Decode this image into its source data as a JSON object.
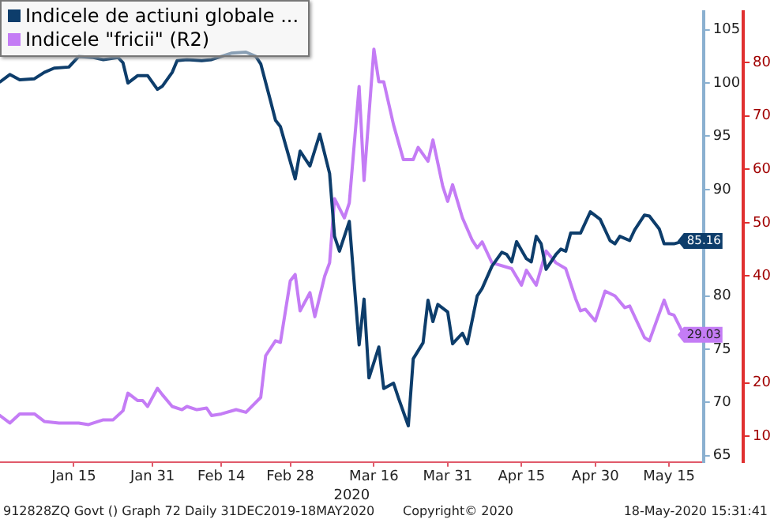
{
  "chart_data": {
    "type": "line",
    "xlabel": "2020",
    "legend": "top left",
    "marker": "none",
    "line_style": "solid",
    "xlim": [
      "2019-12-31",
      "2020-05-22"
    ],
    "xticks": [
      {
        "value": "2020-01-15",
        "label": "Jan 15"
      },
      {
        "value": "2020-01-31",
        "label": "Jan 31"
      },
      {
        "value": "2020-02-14",
        "label": "Feb 14"
      },
      {
        "value": "2020-02-28",
        "label": "Feb 28"
      },
      {
        "value": "2020-03-16",
        "label": "Mar 16"
      },
      {
        "value": "2020-03-31",
        "label": "Mar 31"
      },
      {
        "value": "2020-04-15",
        "label": "Apr 15"
      },
      {
        "value": "2020-04-30",
        "label": "Apr 30"
      },
      {
        "value": "2020-05-15",
        "label": "May 15"
      }
    ],
    "ylim": [
      64.4,
      106.7
    ],
    "yticks": [
      65,
      70,
      75,
      80,
      90,
      95,
      100,
      105
    ],
    "y2lim": [
      5.2,
      89.5
    ],
    "y2ticks": [
      10,
      20,
      40,
      50,
      60,
      70,
      80
    ],
    "annotations": [
      "912828ZQ Govt () Graph 72  Daily 31DEC2019-18MAY2020",
      "Copyright© 2020",
      "18-May-2020 15:31:41"
    ],
    "series": [
      {
        "name": "Indicele de actiuni globale ...",
        "color": "#0d3d6b",
        "axis": "y",
        "value_labels": [
          null,
          null,
          null,
          null,
          null,
          null,
          null,
          null,
          null,
          null,
          null,
          null,
          null,
          null,
          null,
          null,
          null,
          null,
          null,
          null,
          null,
          null,
          null,
          null,
          null,
          null,
          null,
          null,
          null,
          null,
          null,
          null,
          null,
          null,
          null,
          null,
          null,
          null,
          null,
          null,
          null,
          null,
          null,
          null,
          null,
          null,
          null,
          null,
          null,
          null,
          null,
          null,
          null,
          null,
          null,
          null,
          null,
          null,
          null,
          null,
          null,
          null,
          null,
          null,
          null,
          null,
          null,
          null,
          null,
          null,
          null,
          null,
          null,
          null,
          null,
          null,
          null,
          null,
          null,
          null,
          null,
          null,
          null,
          "85.16"
        ],
        "x": [
          "2019-12-31",
          "2020-01-02",
          "2020-01-04",
          "2020-01-07",
          "2020-01-09",
          "2020-01-11",
          "2020-01-14",
          "2020-01-16",
          "2020-01-19",
          "2020-01-21",
          "2020-01-24",
          "2020-01-25",
          "2020-01-26",
          "2020-01-28",
          "2020-01-30",
          "2020-02-01",
          "2020-02-02",
          "2020-02-04",
          "2020-02-05",
          "2020-02-07",
          "2020-02-10",
          "2020-02-12",
          "2020-02-16",
          "2020-02-19",
          "2020-02-21",
          "2020-02-22",
          "2020-02-24",
          "2020-02-25",
          "2020-02-26",
          "2020-02-29",
          "2020-03-01",
          "2020-03-03",
          "2020-03-05",
          "2020-03-07",
          "2020-03-08",
          "2020-03-09",
          "2020-03-11",
          "2020-03-13",
          "2020-03-14",
          "2020-03-15",
          "2020-03-17",
          "2020-03-18",
          "2020-03-20",
          "2020-03-21",
          "2020-03-23",
          "2020-03-24",
          "2020-03-26",
          "2020-03-27",
          "2020-03-28",
          "2020-03-29",
          "2020-03-31",
          "2020-04-01",
          "2020-04-03",
          "2020-04-04",
          "2020-04-06",
          "2020-04-07",
          "2020-04-09",
          "2020-04-11",
          "2020-04-12",
          "2020-04-13",
          "2020-04-14",
          "2020-04-16",
          "2020-04-17",
          "2020-04-18",
          "2020-04-19",
          "2020-04-20",
          "2020-04-22",
          "2020-04-23",
          "2020-04-24",
          "2020-04-25",
          "2020-04-27",
          "2020-04-29",
          "2020-05-01",
          "2020-05-03",
          "2020-05-04",
          "2020-05-05",
          "2020-05-07",
          "2020-05-08",
          "2020-05-10",
          "2020-05-11",
          "2020-05-13",
          "2020-05-14",
          "2020-05-16",
          "2020-05-18"
        ],
        "values": [
          100.1,
          100.8,
          100.3,
          100.4,
          101.0,
          101.4,
          101.5,
          102.5,
          102.4,
          102.2,
          102.4,
          101.9,
          100.0,
          100.7,
          100.7,
          99.4,
          99.7,
          101.0,
          102.1,
          102.2,
          102.1,
          102.2,
          102.8,
          102.9,
          102.5,
          101.8,
          98.3,
          96.5,
          95.9,
          91.0,
          93.6,
          92.2,
          95.2,
          91.5,
          85.6,
          84.2,
          87.0,
          75.4,
          79.7,
          72.3,
          75.2,
          71.3,
          71.8,
          70.4,
          67.8,
          74.1,
          75.6,
          79.6,
          77.6,
          79.2,
          78.5,
          75.5,
          76.5,
          75.5,
          80.0,
          80.7,
          82.8,
          84.1,
          83.9,
          83.2,
          85.1,
          83.5,
          83.2,
          85.6,
          84.9,
          82.5,
          83.9,
          84.4,
          84.2,
          85.9,
          85.9,
          87.9,
          87.2,
          85.2,
          84.9,
          85.6,
          85.2,
          86.2,
          87.6,
          87.5,
          86.3,
          84.9,
          84.9,
          85.16
        ]
      },
      {
        "name": "Indicele \"fricii\" (R2)",
        "color": "#c47cf5",
        "axis": "y2",
        "value_labels": [
          null,
          null,
          null,
          null,
          null,
          null,
          null,
          null,
          null,
          null,
          null,
          null,
          null,
          null,
          null,
          null,
          null,
          null,
          null,
          null,
          null,
          null,
          null,
          null,
          null,
          null,
          null,
          null,
          null,
          null,
          null,
          null,
          null,
          null,
          null,
          null,
          null,
          null,
          null,
          null,
          null,
          null,
          null,
          null,
          null,
          null,
          null,
          null,
          null,
          null,
          null,
          null,
          null,
          null,
          null,
          null,
          null,
          null,
          null,
          null,
          null,
          null,
          null,
          null,
          null,
          null,
          null,
          null,
          null,
          null,
          null,
          null,
          null,
          null,
          null,
          null,
          null,
          null,
          null,
          null,
          "29.03"
        ],
        "x": [
          "2019-12-31",
          "2020-01-02",
          "2020-01-04",
          "2020-01-07",
          "2020-01-09",
          "2020-01-12",
          "2020-01-16",
          "2020-01-18",
          "2020-01-21",
          "2020-01-23",
          "2020-01-25",
          "2020-01-26",
          "2020-01-28",
          "2020-01-29",
          "2020-01-30",
          "2020-02-01",
          "2020-02-02",
          "2020-02-04",
          "2020-02-06",
          "2020-02-07",
          "2020-02-09",
          "2020-02-11",
          "2020-02-12",
          "2020-02-14",
          "2020-02-17",
          "2020-02-19",
          "2020-02-22",
          "2020-02-23",
          "2020-02-25",
          "2020-02-26",
          "2020-02-28",
          "2020-02-29",
          "2020-03-01",
          "2020-03-03",
          "2020-03-04",
          "2020-03-06",
          "2020-03-07",
          "2020-03-08",
          "2020-03-10",
          "2020-03-11",
          "2020-03-13",
          "2020-03-14",
          "2020-03-16",
          "2020-03-17",
          "2020-03-18",
          "2020-03-20",
          "2020-03-22",
          "2020-03-24",
          "2020-03-25",
          "2020-03-27",
          "2020-03-28",
          "2020-03-30",
          "2020-03-31",
          "2020-04-01",
          "2020-04-03",
          "2020-04-05",
          "2020-04-06",
          "2020-04-07",
          "2020-04-09",
          "2020-04-13",
          "2020-04-15",
          "2020-04-16",
          "2020-04-18",
          "2020-04-20",
          "2020-04-22",
          "2020-04-24",
          "2020-04-26",
          "2020-04-27",
          "2020-04-28",
          "2020-04-30",
          "2020-05-02",
          "2020-05-04",
          "2020-05-06",
          "2020-05-07",
          "2020-05-10",
          "2020-05-11",
          "2020-05-13",
          "2020-05-14",
          "2020-05-15",
          "2020-05-16",
          "2020-05-18"
        ],
        "values": [
          13.9,
          12.5,
          14.2,
          14.2,
          12.8,
          12.5,
          12.5,
          12.2,
          13.1,
          13.1,
          14.8,
          18.1,
          16.7,
          16.7,
          15.6,
          19.0,
          17.8,
          15.6,
          15.0,
          15.6,
          15.0,
          15.3,
          13.9,
          14.2,
          15.0,
          14.5,
          17.3,
          25.1,
          27.9,
          27.6,
          39.1,
          40.3,
          33.5,
          36.9,
          32.4,
          40.0,
          42.5,
          54.5,
          50.9,
          53.7,
          75.5,
          57.9,
          82.5,
          76.4,
          76.4,
          68.3,
          61.8,
          61.8,
          64.1,
          61.5,
          65.5,
          56.8,
          54.0,
          57.1,
          50.9,
          46.7,
          45.3,
          46.4,
          42.5,
          41.4,
          38.3,
          41.1,
          38.3,
          44.7,
          42.5,
          41.4,
          35.8,
          33.5,
          33.8,
          31.6,
          37.2,
          36.3,
          34.1,
          34.4,
          28.5,
          27.9,
          33.0,
          35.5,
          33.0,
          32.7,
          29.03
        ]
      }
    ]
  }
}
